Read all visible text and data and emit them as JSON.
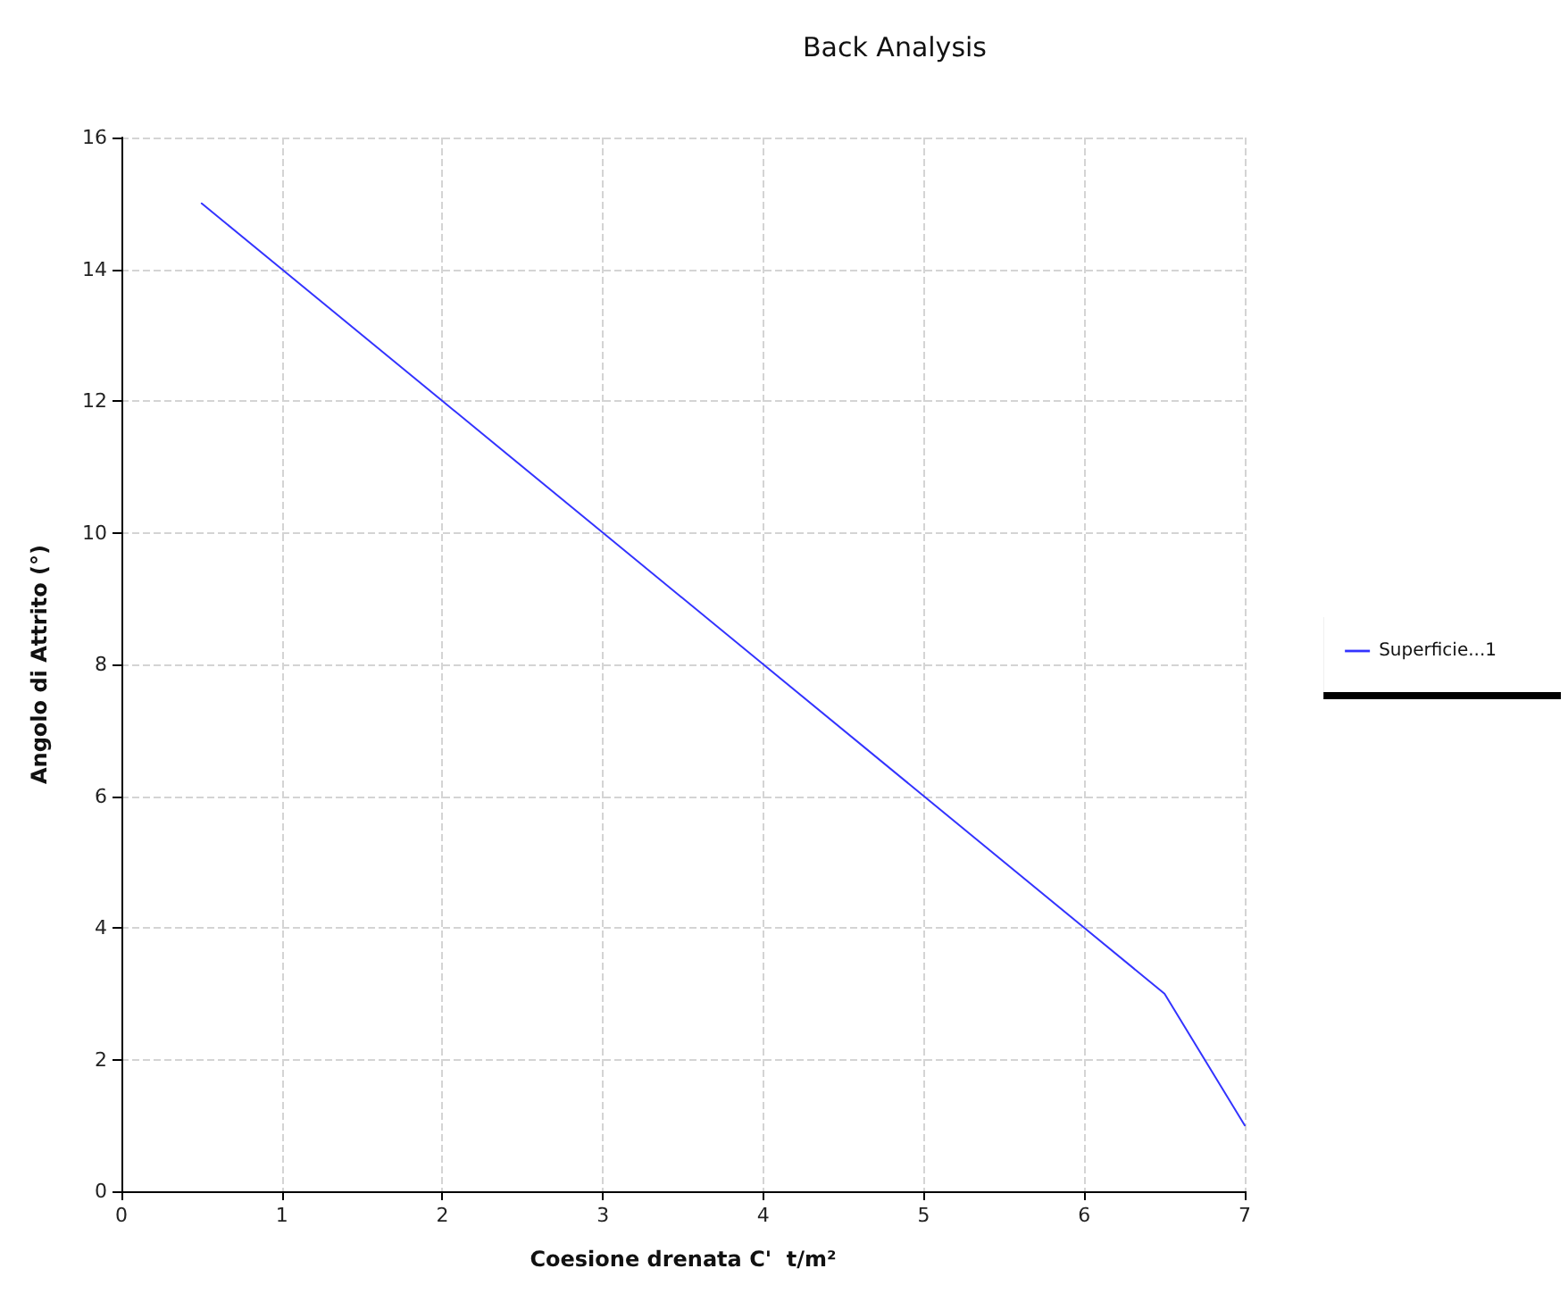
{
  "chart_data": {
    "type": "line",
    "title": "Back Analysis",
    "xlabel": "Coesione drenata C'  t/m²",
    "ylabel": "Angolo di Attrito (°)",
    "x": [
      0.5,
      1,
      2,
      3,
      4,
      5,
      6,
      6.5,
      7
    ],
    "series": [
      {
        "name": "Superficie...1",
        "color": "#3333ff",
        "values": [
          15,
          14,
          12,
          10,
          8,
          6,
          4,
          3,
          1
        ]
      }
    ],
    "xlim": [
      0,
      7
    ],
    "xticks": [
      0,
      1,
      2,
      3,
      4,
      5,
      6,
      7
    ],
    "ylim": [
      0,
      16
    ],
    "yticks": [
      0,
      2,
      4,
      6,
      8,
      10,
      12,
      14,
      16
    ],
    "grid": true,
    "legend": "right",
    "marker": "none",
    "line_style": "solid"
  }
}
